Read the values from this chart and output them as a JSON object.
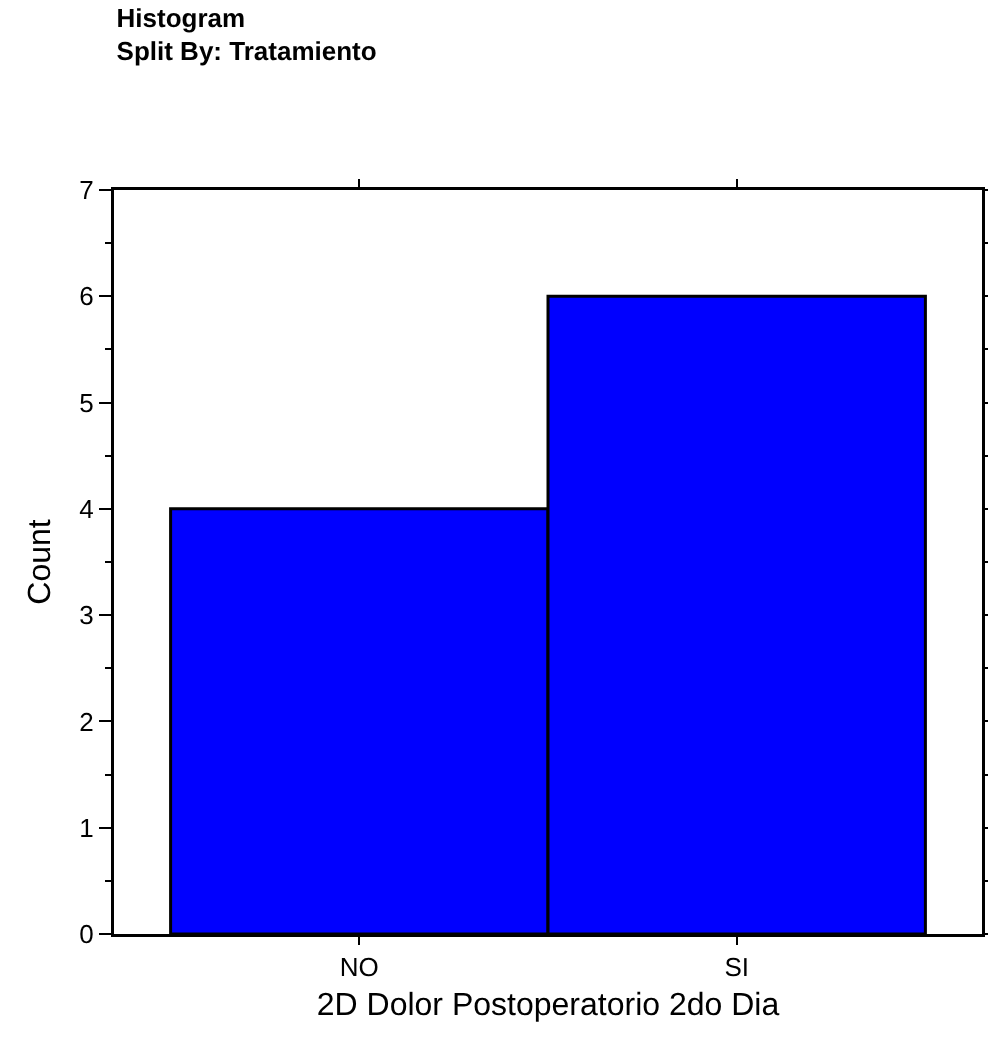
{
  "chart_data": {
    "type": "bar",
    "title": "Histogram",
    "subtitle": "Split By: Tratamiento",
    "xlabel": "2D Dolor Postoperatorio 2do Dia",
    "ylabel": "Count",
    "categories": [
      "NO",
      "SI"
    ],
    "values": [
      4,
      6
    ],
    "color": "#0000ff",
    "ylim": [
      0,
      7
    ],
    "yticks": [
      0,
      1,
      2,
      3,
      4,
      5,
      6,
      7
    ],
    "grid": false
  }
}
